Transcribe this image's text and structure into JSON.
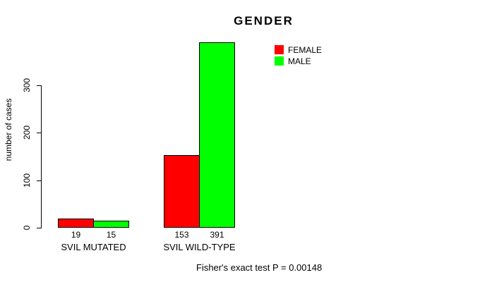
{
  "figure": {
    "title": "GENDER",
    "annotation": "Fisher's exact test P = 0.00148"
  },
  "chart_data": {
    "type": "bar",
    "title": "GENDER",
    "xlabel": "",
    "ylabel": "number of cases",
    "categories": [
      "SVIL MUTATED",
      "SVIL WILD-TYPE"
    ],
    "series": [
      {
        "name": "FEMALE",
        "color": "#ff0000",
        "values": [
          19,
          153
        ]
      },
      {
        "name": "MALE",
        "color": "#00ff00",
        "values": [
          15,
          391
        ]
      }
    ],
    "show_bar_values": true,
    "bar_border_color": "#000000",
    "yticks": [
      0,
      100,
      200,
      300
    ],
    "ylim": [
      0,
      400
    ],
    "grid": false,
    "legend": {
      "position": "top-right",
      "entries": [
        "FEMALE",
        "MALE"
      ]
    },
    "annotation": "Fisher's exact test P = 0.00148"
  }
}
